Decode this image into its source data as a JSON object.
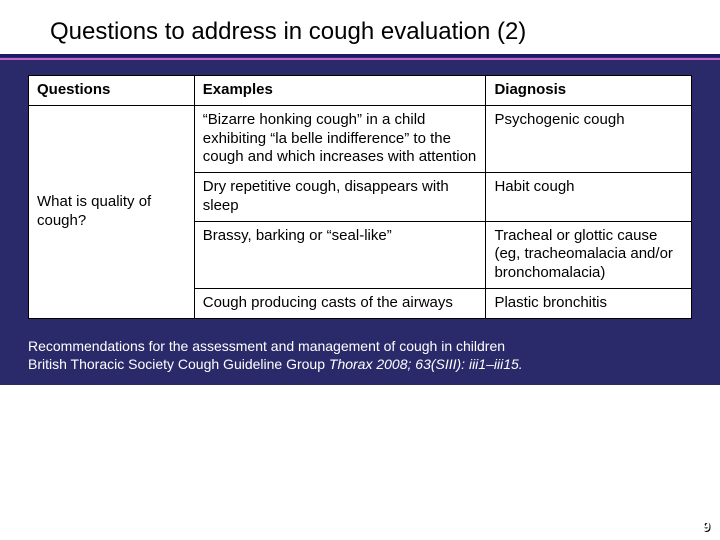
{
  "title": "Questions to address in cough evaluation (2)",
  "table": {
    "headers": {
      "q": "Questions",
      "e": "Examples",
      "d": "Diagnosis"
    },
    "question": "What is quality of cough?",
    "rows": [
      {
        "example": "“Bizarre honking cough” in a child exhibiting “la belle indifference” to the cough and which increases with attention",
        "diagnosis": "Psychogenic cough"
      },
      {
        "example": "Dry repetitive cough, disappears with sleep",
        "diagnosis": "Habit cough"
      },
      {
        "example": "Brassy, barking or “seal-like”",
        "diagnosis": "Tracheal or glottic cause (eg, tracheomalacia and/or bronchomalacia)"
      },
      {
        "example": "Cough producing casts of the airways",
        "diagnosis": "Plastic bronchitis"
      }
    ]
  },
  "footer": {
    "line1": "Recommendations for the assessment and management of cough in children",
    "line2a": "British Thoracic Society Cough Guideline Group ",
    "line2b": "Thorax 2008; 63(SIII): iii1–iii15."
  },
  "pagenum": "9",
  "colors": {
    "main_bg": "#2a2a6a",
    "title_underline": "#1a1a6a",
    "accent_line": "#c366c3",
    "table_bg": "#ffffff",
    "border": "#000000",
    "text": "#000000",
    "footer_text": "#ffffff"
  }
}
